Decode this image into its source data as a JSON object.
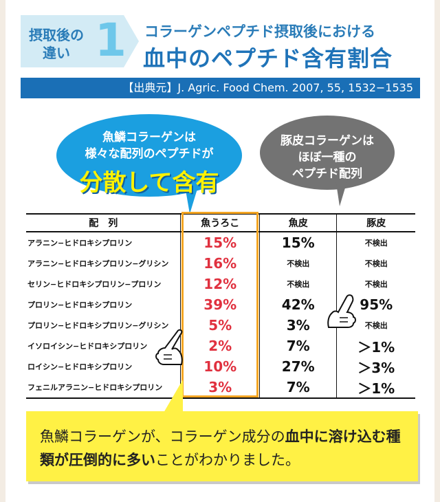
{
  "header": {
    "badge_line1": "摂取後の",
    "badge_line2": "違い",
    "badge_number": "1",
    "subtitle": "コラーゲンペプチド摂取後における",
    "title": "血中のペプチド含有割合",
    "source": "【出典元】J. Agric. Food Chem. 2007, 55, 1532−1535"
  },
  "bubbles": {
    "fish": {
      "line1": "魚鱗コラーゲンは",
      "line2": "様々な配列のペプチドが",
      "emphasis": "分散して含有"
    },
    "pig": {
      "line1": "豚皮コラーゲンは",
      "line2": "ほぼ一種の",
      "line3": "ペプチド配列"
    }
  },
  "table": {
    "headers": [
      "配　列",
      "魚うろこ",
      "魚皮",
      "豚皮"
    ],
    "rows": [
      {
        "sequence": "アラニン−ヒドロキシプロリン",
        "fish_scale": "15%",
        "fish_skin": "15%",
        "pig_skin": "不検出"
      },
      {
        "sequence": "アラニン−ヒドロキシプロリン−グリシン",
        "fish_scale": "16%",
        "fish_skin": "不検出",
        "pig_skin": "不検出"
      },
      {
        "sequence": "セリン−ヒドロキシプロリン−プロリン",
        "fish_scale": "12%",
        "fish_skin": "不検出",
        "pig_skin": "不検出"
      },
      {
        "sequence": "プロリン−ヒドロキシプロリン",
        "fish_scale": "39%",
        "fish_skin": "42%",
        "pig_skin": "95%"
      },
      {
        "sequence": "プロリン−ヒドロキシプロリン−グリシン",
        "fish_scale": "5%",
        "fish_skin": "3%",
        "pig_skin": "不検出"
      },
      {
        "sequence": "イソロイシン−ヒドロキシプロリン",
        "fish_scale": "2%",
        "fish_skin": "7%",
        "pig_skin": "＞1%"
      },
      {
        "sequence": "ロイシン−ヒドロキシプロリン",
        "fish_scale": "10%",
        "fish_skin": "27%",
        "pig_skin": "＞3%"
      },
      {
        "sequence": "フェニルアラニン−ヒドロキシプロリン",
        "fish_scale": "3%",
        "fish_skin": "7%",
        "pig_skin": "＞1%"
      }
    ]
  },
  "note": {
    "part1": "魚鱗コラーゲンが、コラーゲン成分の",
    "bold1": "血中に溶け込む種類が圧倒的に多い",
    "part2": "ことがわかりました。"
  },
  "colors": {
    "accent_blue": "#1a6fb6",
    "bubble_blue": "#1b9fe0",
    "bubble_gray": "#737373",
    "highlight_red": "#e0313f",
    "highlight_box": "#f5a623",
    "note_yellow": "#fff145"
  },
  "icons": [
    "pointing-hand-icon"
  ]
}
